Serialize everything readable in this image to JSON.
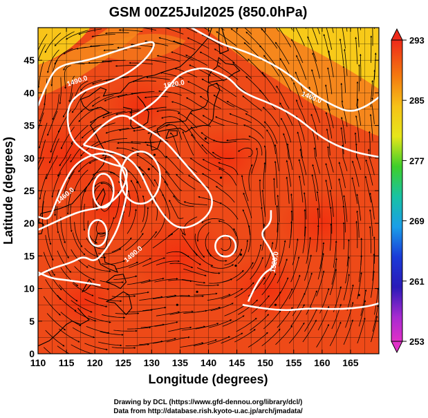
{
  "title": "GSM 00Z25Jul2025 (850.0hPa)",
  "xaxis": {
    "label": "Longitude (degrees)",
    "range": [
      110,
      170
    ],
    "ticks": [
      "110",
      "115",
      "120",
      "125",
      "130",
      "135",
      "140",
      "145",
      "150",
      "155",
      "160",
      "165"
    ]
  },
  "yaxis": {
    "label": "Latitude  (degrees)",
    "range": [
      0,
      50
    ],
    "ticks": [
      "0",
      "5",
      "10",
      "15",
      "20",
      "25",
      "30",
      "35",
      "40",
      "45"
    ]
  },
  "colorbar": {
    "min": 253,
    "max": 293,
    "labels": [
      "293",
      "285",
      "277",
      "269",
      "261",
      "253"
    ]
  },
  "contours": {
    "labels": [
      "1490.0",
      "1520.0",
      "1460.0",
      "1460.0",
      "1490.0",
      "1520.0"
    ]
  },
  "footer": {
    "line1": "Drawing by DCL (https://www.gfd-dennou.org/library/dcl/)",
    "line2": "Data from http://database.rish.kyoto-u.ac.jp/arch/jmadata/"
  },
  "colors": {
    "field_warm": "#ee4a18",
    "field_hot": "#f23a10",
    "field_orange": "#f68a1c",
    "field_yellow": "#f8d21a",
    "contour": "#ffffff",
    "coast": "#000000"
  }
}
